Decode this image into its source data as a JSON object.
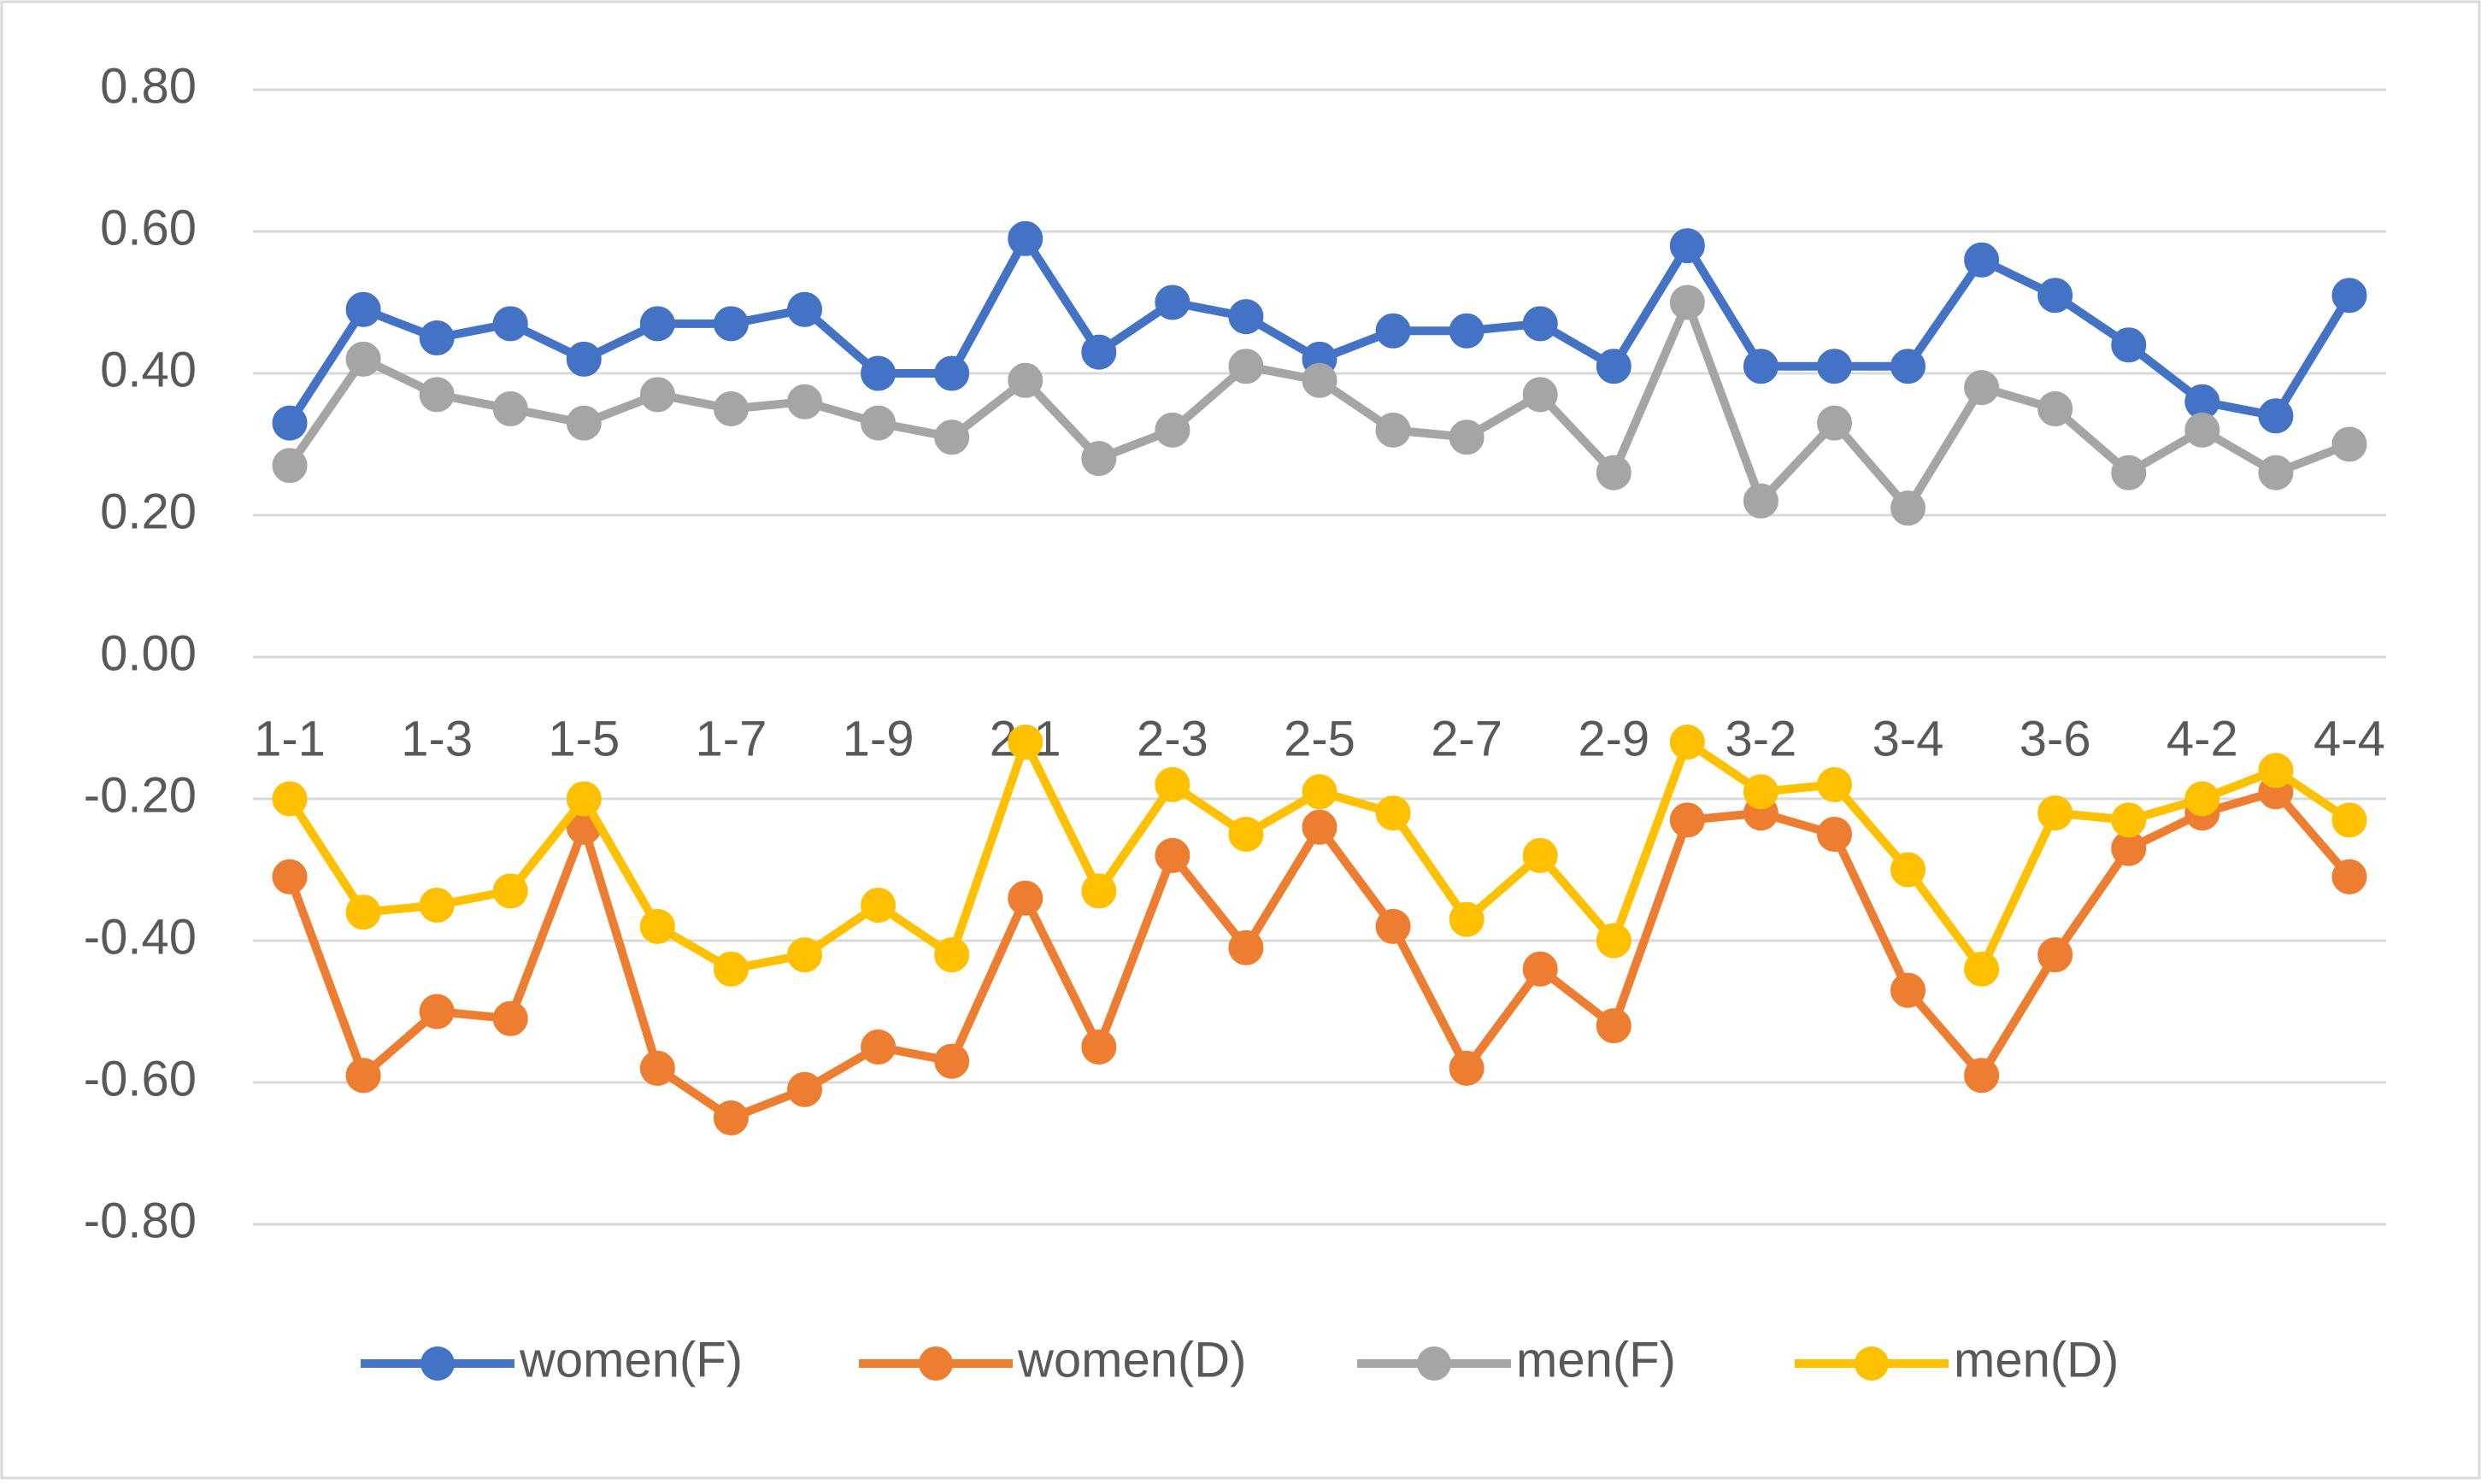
{
  "chart_data": {
    "type": "line",
    "categories": [
      "1-1",
      null,
      "1-3",
      null,
      "1-5",
      null,
      "1-7",
      null,
      "1-9",
      null,
      "2-1",
      null,
      "2-3",
      null,
      "2-5",
      null,
      "2-7",
      null,
      "2-9",
      null,
      "3-2",
      null,
      "3-4",
      null,
      "3-6",
      null,
      "4-2",
      null,
      "4-4"
    ],
    "series": [
      {
        "name": "women(F)",
        "color": "#4472c4",
        "values": [
          0.33,
          0.49,
          0.45,
          0.47,
          0.42,
          0.47,
          0.47,
          0.49,
          0.4,
          0.4,
          0.59,
          0.43,
          0.5,
          0.48,
          0.42,
          0.46,
          0.46,
          0.47,
          0.41,
          0.58,
          0.41,
          0.41,
          0.41,
          0.56,
          0.51,
          0.44,
          0.36,
          0.34,
          0.51
        ]
      },
      {
        "name": "women(D)",
        "color": "#ed7d31",
        "values": [
          -0.31,
          -0.59,
          -0.5,
          -0.51,
          -0.24,
          -0.58,
          -0.65,
          -0.61,
          -0.55,
          -0.57,
          -0.34,
          -0.55,
          -0.28,
          -0.41,
          -0.24,
          -0.38,
          -0.58,
          -0.44,
          -0.52,
          -0.23,
          -0.22,
          -0.25,
          -0.47,
          -0.59,
          -0.42,
          -0.27,
          -0.22,
          -0.19,
          -0.31
        ]
      },
      {
        "name": "men(F)",
        "color": "#a5a5a5",
        "values": [
          0.27,
          0.42,
          0.37,
          0.35,
          0.33,
          0.37,
          0.35,
          0.36,
          0.33,
          0.31,
          0.39,
          0.28,
          0.32,
          0.41,
          0.39,
          0.32,
          0.31,
          0.37,
          0.26,
          0.5,
          0.22,
          0.33,
          0.21,
          0.38,
          0.35,
          0.26,
          0.32,
          0.26,
          0.3
        ]
      },
      {
        "name": "men(D)",
        "color": "#ffc000",
        "values": [
          -0.2,
          -0.36,
          -0.35,
          -0.33,
          -0.2,
          -0.38,
          -0.44,
          -0.42,
          -0.35,
          -0.42,
          -0.12,
          -0.33,
          -0.18,
          -0.25,
          -0.19,
          -0.22,
          -0.37,
          -0.28,
          -0.4,
          -0.12,
          -0.19,
          -0.18,
          -0.3,
          -0.44,
          -0.22,
          -0.23,
          -0.2,
          -0.16,
          -0.23
        ]
      }
    ],
    "ylim": [
      -0.8,
      0.8
    ],
    "yticks": [
      {
        "value": -0.8,
        "label": "-0.80"
      },
      {
        "value": -0.6,
        "label": "-0.60"
      },
      {
        "value": -0.4,
        "label": "-0.40"
      },
      {
        "value": -0.2,
        "label": "-0.20"
      },
      {
        "value": 0,
        "label": "0.00"
      },
      {
        "value": 0.2,
        "label": "0.20"
      },
      {
        "value": 0.4,
        "label": "0.40"
      },
      {
        "value": 0.6,
        "label": "0.60"
      },
      {
        "value": 0.8,
        "label": "0.80"
      }
    ],
    "grid": true,
    "legend": "bottom"
  }
}
